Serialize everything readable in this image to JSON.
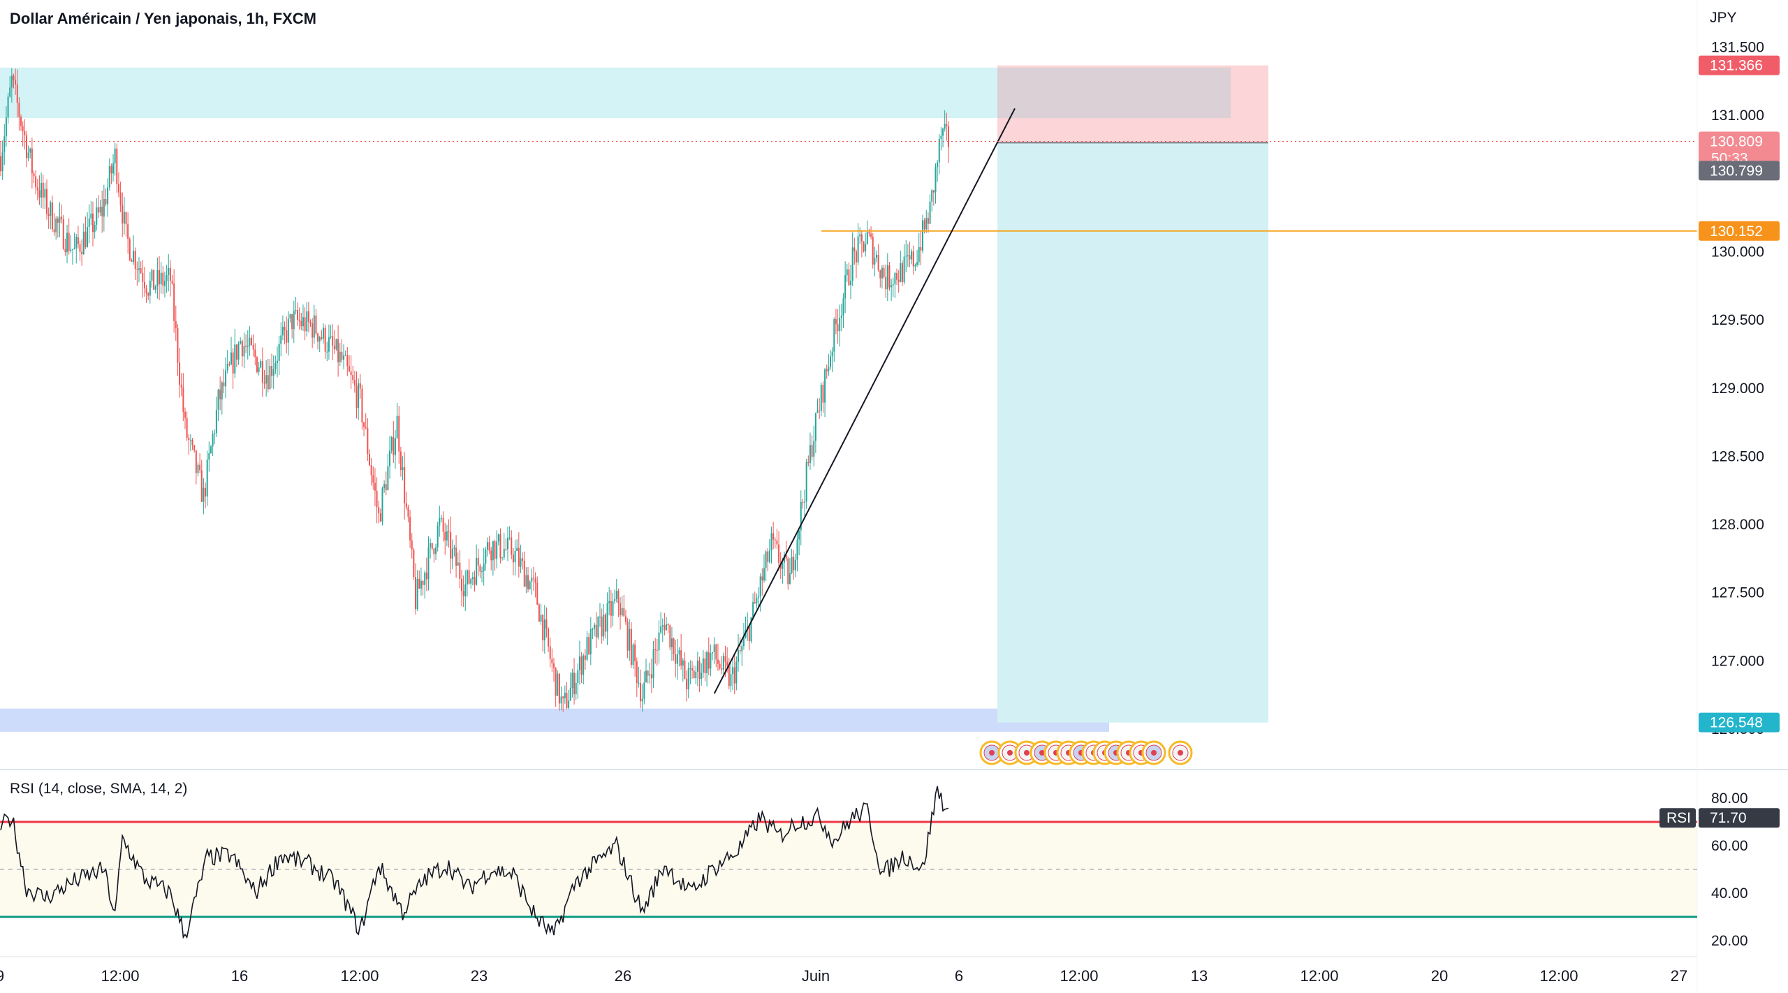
{
  "header": {
    "title": "Dollar Américain / Yen japonais, 1h, FXCM",
    "currency": "JPY"
  },
  "colors": {
    "up": "#26a69a",
    "down": "#ef5350",
    "supply_zone": "#d3f3f6",
    "demand_zone": "#cddcfb",
    "stop_zone": "#fbd5d7",
    "target_zone": "#d3f1f4",
    "level_line": "#f5a623",
    "rsi_line": "#131722",
    "rsi_upper": "#f23645",
    "rsi_lower": "#089981",
    "rsi_band": "#fdfaee"
  },
  "price_axis": {
    "labels": [
      "131.500",
      "131.000",
      "130.000",
      "129.500",
      "129.000",
      "128.500",
      "128.000",
      "127.500",
      "127.000",
      "126.500"
    ],
    "tags": {
      "stop": "131.366",
      "last": "130.809",
      "countdown": "50:33",
      "entry": "130.799",
      "level": "130.152",
      "target": "126.548"
    }
  },
  "rsi": {
    "label": "RSI (14, close, SMA, 14, 2)",
    "axis_labels": [
      "80.00",
      "60.00",
      "40.00",
      "20.00"
    ],
    "tag_name": "RSI",
    "tag_value": "71.70",
    "value": 71.7
  },
  "time_axis": {
    "labels": [
      "9",
      "12:00",
      "16",
      "12:00",
      "23",
      "26",
      "Juin",
      "6",
      "12:00",
      "13",
      "12:00",
      "20",
      "12:00",
      "27"
    ]
  },
  "chart_data": {
    "type": "candlestick",
    "symbol": "USDJPY",
    "interval": "1h",
    "ylim": [
      126.2,
      131.7
    ],
    "anchors": [
      [
        0,
        130.7
      ],
      [
        6,
        131.25
      ],
      [
        12,
        130.9
      ],
      [
        18,
        130.55
      ],
      [
        26,
        130.3
      ],
      [
        40,
        130.0
      ],
      [
        55,
        130.3
      ],
      [
        62,
        130.7
      ],
      [
        68,
        130.1
      ],
      [
        80,
        129.75
      ],
      [
        92,
        129.8
      ],
      [
        100,
        128.7
      ],
      [
        110,
        128.2
      ],
      [
        118,
        128.9
      ],
      [
        130,
        129.35
      ],
      [
        145,
        129.1
      ],
      [
        158,
        129.5
      ],
      [
        170,
        129.45
      ],
      [
        185,
        129.2
      ],
      [
        195,
        128.9
      ],
      [
        205,
        128.05
      ],
      [
        215,
        128.75
      ],
      [
        225,
        127.45
      ],
      [
        238,
        128.0
      ],
      [
        252,
        127.55
      ],
      [
        265,
        127.85
      ],
      [
        278,
        127.8
      ],
      [
        290,
        127.5
      ],
      [
        300,
        126.9
      ],
      [
        305,
        126.65
      ],
      [
        318,
        127.1
      ],
      [
        335,
        127.45
      ],
      [
        348,
        126.75
      ],
      [
        360,
        127.3
      ],
      [
        372,
        126.85
      ],
      [
        386,
        127.05
      ],
      [
        396,
        126.85
      ],
      [
        406,
        127.25
      ],
      [
        418,
        127.85
      ],
      [
        428,
        127.6
      ],
      [
        440,
        128.6
      ],
      [
        452,
        129.4
      ],
      [
        462,
        129.95
      ],
      [
        470,
        130.1
      ],
      [
        480,
        129.8
      ],
      [
        488,
        129.85
      ],
      [
        496,
        129.95
      ],
      [
        504,
        130.3
      ],
      [
        510,
        130.85
      ],
      [
        514,
        130.81
      ]
    ],
    "trendline": {
      "from": [
        387,
        126.76
      ],
      "to": [
        550,
        131.05
      ]
    },
    "zones": {
      "supply": [
        130.98,
        131.35
      ],
      "demand": [
        126.48,
        126.65
      ]
    },
    "position": {
      "type": "short",
      "entry": 130.799,
      "stop": 131.366,
      "target": 126.548
    },
    "level": 130.152,
    "rsi_ylim": [
      10,
      90
    ],
    "rsi_levels": {
      "upper": 70,
      "middle": 50,
      "lower": 30
    },
    "rsi_anchors": [
      [
        0,
        68
      ],
      [
        6,
        72
      ],
      [
        14,
        42
      ],
      [
        24,
        38
      ],
      [
        40,
        45
      ],
      [
        56,
        50
      ],
      [
        62,
        30
      ],
      [
        66,
        63
      ],
      [
        78,
        46
      ],
      [
        92,
        40
      ],
      [
        100,
        22
      ],
      [
        112,
        55
      ],
      [
        125,
        56
      ],
      [
        138,
        40
      ],
      [
        152,
        56
      ],
      [
        168,
        52
      ],
      [
        182,
        44
      ],
      [
        195,
        24
      ],
      [
        205,
        52
      ],
      [
        218,
        32
      ],
      [
        230,
        46
      ],
      [
        242,
        52
      ],
      [
        254,
        42
      ],
      [
        266,
        50
      ],
      [
        278,
        48
      ],
      [
        290,
        30
      ],
      [
        300,
        22
      ],
      [
        312,
        45
      ],
      [
        322,
        52
      ],
      [
        334,
        60
      ],
      [
        348,
        32
      ],
      [
        360,
        52
      ],
      [
        374,
        40
      ],
      [
        386,
        50
      ],
      [
        400,
        58
      ],
      [
        412,
        72
      ],
      [
        422,
        64
      ],
      [
        432,
        70
      ],
      [
        444,
        72
      ],
      [
        452,
        62
      ],
      [
        462,
        72
      ],
      [
        470,
        75
      ],
      [
        478,
        48
      ],
      [
        490,
        56
      ],
      [
        500,
        50
      ],
      [
        508,
        84
      ],
      [
        514,
        73
      ]
    ]
  }
}
